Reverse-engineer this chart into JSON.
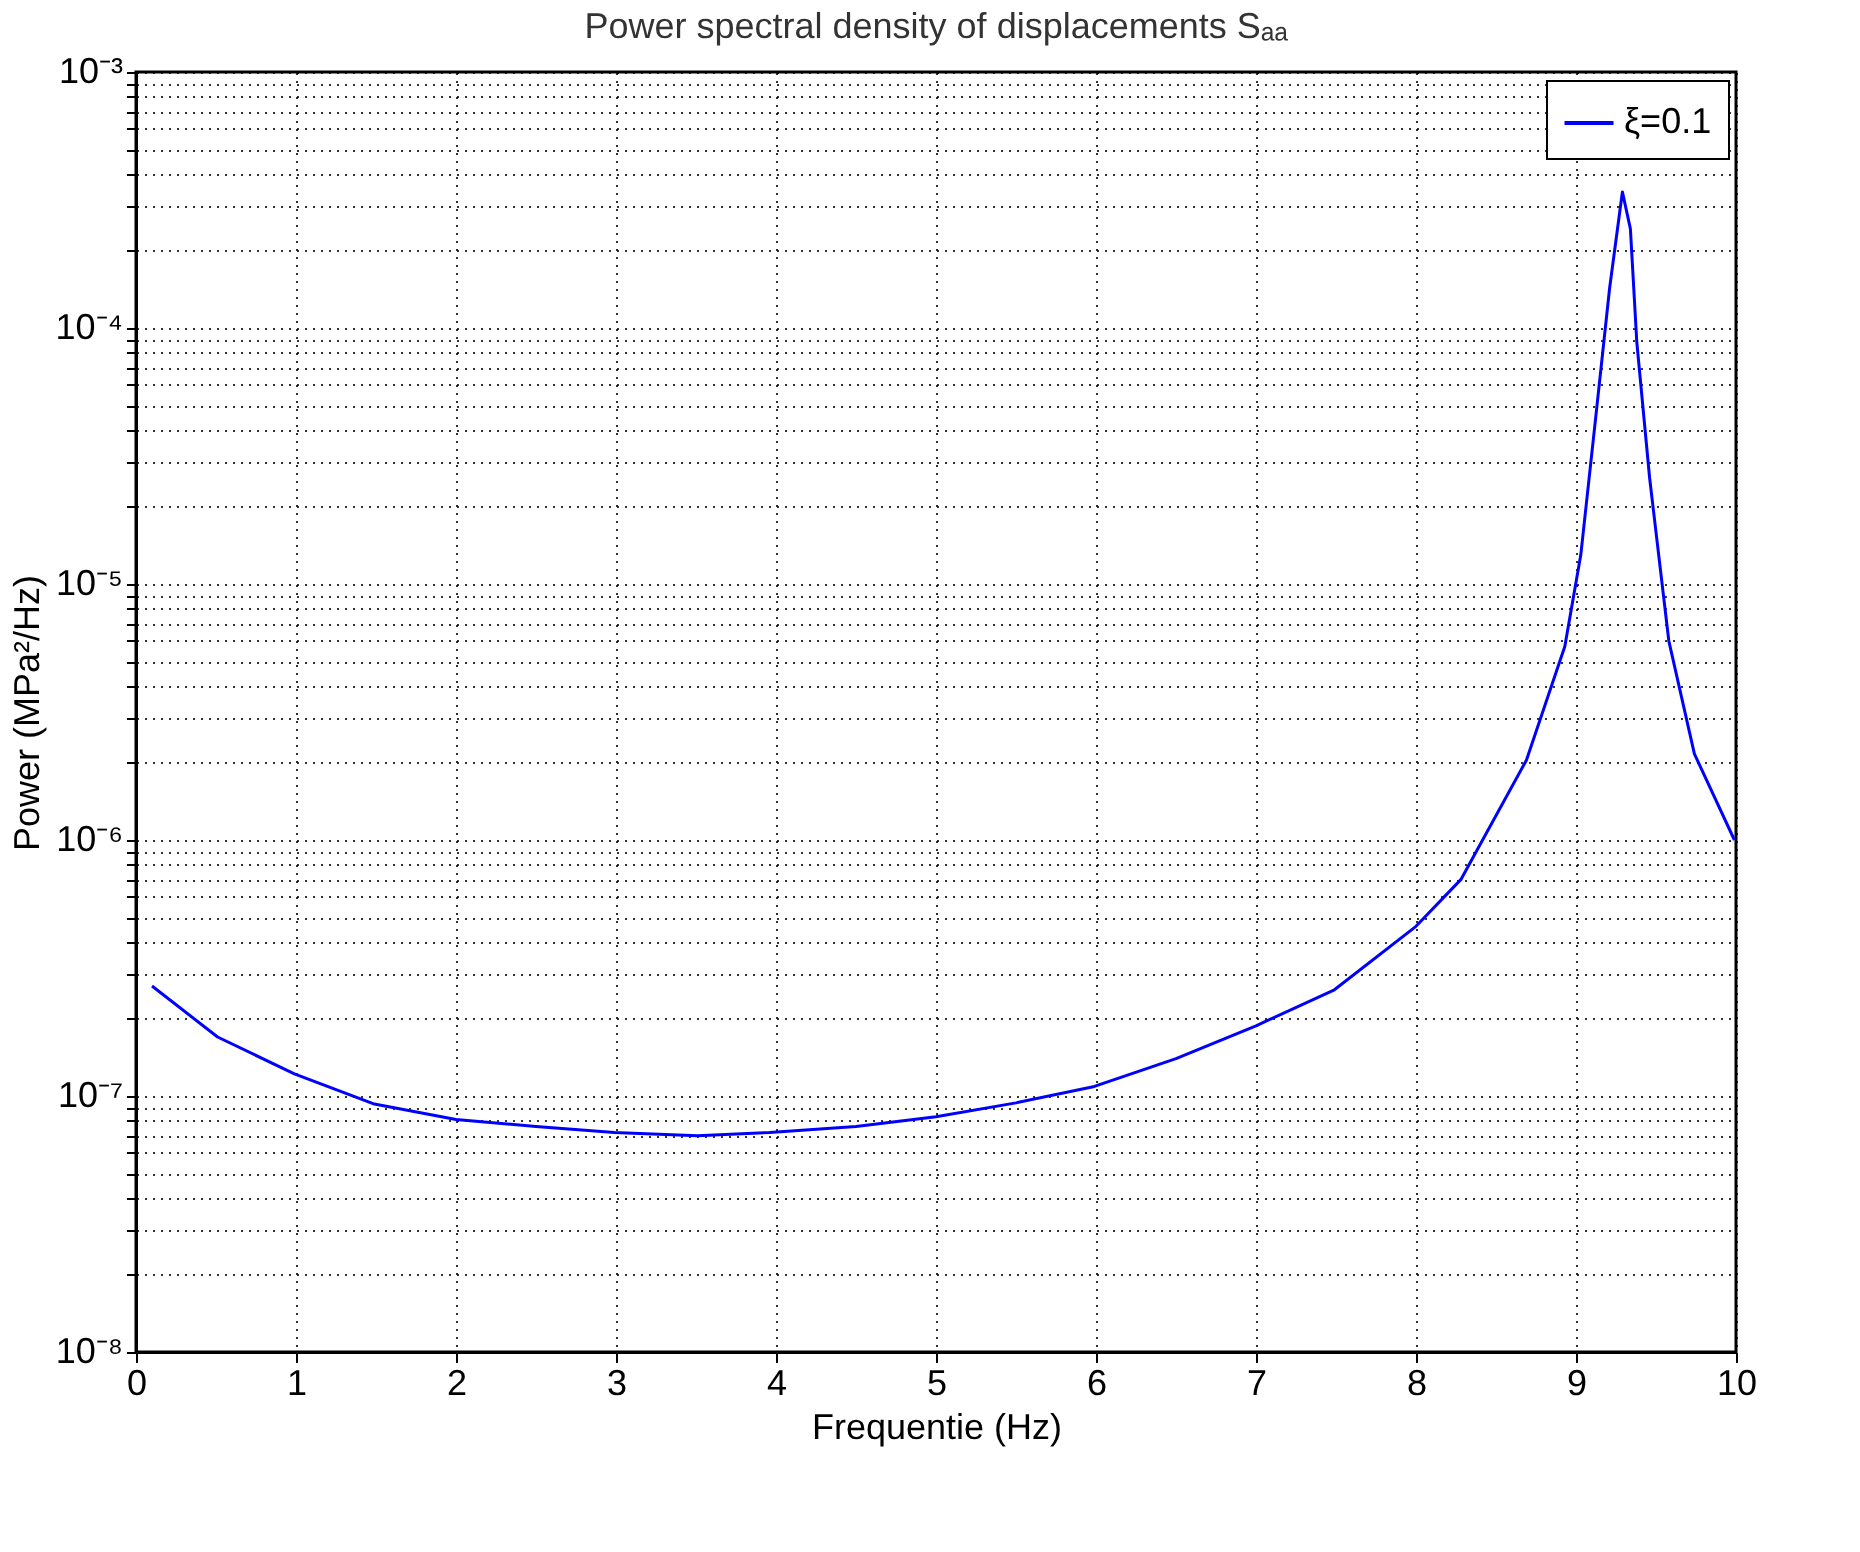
{
  "chart_data": {
    "type": "line",
    "title": "Power spectral density of displacements Sₐₐ",
    "xlabel": "Frequentie (Hz)",
    "ylabel": "Power (MPa²/Hz)",
    "x": [
      0.1,
      0.51,
      0.99,
      1.49,
      2.0,
      2.5,
      2.99,
      3.51,
      3.96,
      4.5,
      5.0,
      5.5,
      5.99,
      6.5,
      7.0,
      7.49,
      8.0,
      8.28,
      8.69,
      8.93,
      9.03,
      9.13,
      9.21,
      9.29,
      9.34,
      9.38,
      9.46,
      9.58,
      9.74,
      9.99
    ],
    "series": [
      {
        "name": "ξ=0.1",
        "color": "#0000ff",
        "values": [
          2.69e-07,
          1.7e-07,
          1.22e-07,
          9.3e-08,
          8.1e-08,
          7.6e-08,
          7.2e-08,
          7e-08,
          7.2e-08,
          7.6e-08,
          8.3e-08,
          9.4e-08,
          1.09e-07,
          1.4e-07,
          1.88e-07,
          2.6e-07,
          4.6e-07,
          7e-07,
          2.05e-06,
          5.7e-06,
          1.3e-05,
          4.9e-05,
          0.000143,
          0.00034,
          0.000244,
          8.8e-05,
          2.6e-05,
          6e-06,
          2.17e-06,
          1e-06
        ]
      }
    ],
    "log": "y",
    "grid": true,
    "legend": "top right",
    "line_style": "solid",
    "marker": "none",
    "xlim": [
      0,
      10
    ],
    "xticks": [
      0,
      1,
      2,
      3,
      4,
      5,
      6,
      7,
      8,
      9,
      10
    ],
    "ylim": [
      1e-08,
      0.001
    ],
    "yticks": [
      {
        "value": 1e-08,
        "label": "10⁻⁸"
      },
      {
        "value": 2e-08,
        "label": null
      },
      {
        "value": 3e-08,
        "label": null
      },
      {
        "value": 4e-08,
        "label": null
      },
      {
        "value": 5e-08,
        "label": null
      },
      {
        "value": 6e-08,
        "label": null
      },
      {
        "value": 7e-08,
        "label": null
      },
      {
        "value": 8e-08,
        "label": null
      },
      {
        "value": 9e-08,
        "label": null
      },
      {
        "value": 1e-07,
        "label": "10⁻⁷"
      },
      {
        "value": 2e-07,
        "label": null
      },
      {
        "value": 3e-07,
        "label": null
      },
      {
        "value": 4e-07,
        "label": null
      },
      {
        "value": 5e-07,
        "label": null
      },
      {
        "value": 6e-07,
        "label": null
      },
      {
        "value": 7e-07,
        "label": null
      },
      {
        "value": 8e-07,
        "label": null
      },
      {
        "value": 9e-07,
        "label": null
      },
      {
        "value": 1e-06,
        "label": "10⁻⁶"
      },
      {
        "value": 2e-06,
        "label": null
      },
      {
        "value": 3e-06,
        "label": null
      },
      {
        "value": 4e-06,
        "label": null
      },
      {
        "value": 5e-06,
        "label": null
      },
      {
        "value": 6e-06,
        "label": null
      },
      {
        "value": 7e-06,
        "label": null
      },
      {
        "value": 8e-06,
        "label": null
      },
      {
        "value": 9e-06,
        "label": null
      },
      {
        "value": 1e-05,
        "label": "10⁻⁵"
      },
      {
        "value": 2e-05,
        "label": null
      },
      {
        "value": 3e-05,
        "label": null
      },
      {
        "value": 4e-05,
        "label": null
      },
      {
        "value": 5e-05,
        "label": null
      },
      {
        "value": 6e-05,
        "label": null
      },
      {
        "value": 7e-05,
        "label": null
      },
      {
        "value": 8e-05,
        "label": null
      },
      {
        "value": 9e-05,
        "label": null
      },
      {
        "value": 0.0001,
        "label": "10⁻⁴"
      },
      {
        "value": 0.0002,
        "label": null
      },
      {
        "value": 0.0003,
        "label": null
      },
      {
        "value": 0.0004,
        "label": null
      },
      {
        "value": 0.0005,
        "label": null
      },
      {
        "value": 0.0006,
        "label": null
      },
      {
        "value": 0.0007,
        "label": null
      },
      {
        "value": 0.0008,
        "label": null
      },
      {
        "value": 0.0009,
        "label": null
      },
      {
        "value": 0.001,
        "label": "10⁻³"
      }
    ]
  }
}
